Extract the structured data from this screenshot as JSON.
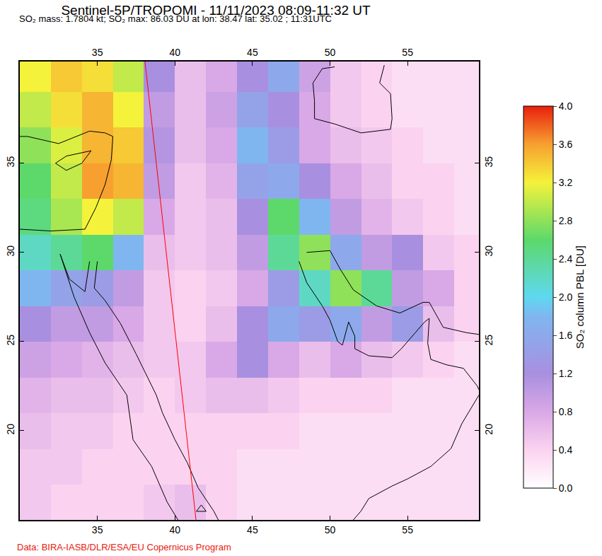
{
  "chart_data": {
    "type": "heatmap",
    "title": "Sentinel-5P/TROPOMI - 11/11/2023 08:09-11:32 UT",
    "subtitle": "SO₂ mass: 1.7804 kt; SO₂ max: 86.03 DU at lon: 38.47 lat: 35.02 ; 11:31UTC",
    "source": "Data: BIRA-IASB/DLR/ESA/EU Copernicus Program",
    "x": [
      31,
      33,
      35,
      37,
      39,
      41,
      43,
      45,
      47,
      49,
      51,
      53,
      55,
      57,
      59
    ],
    "y": [
      16,
      18,
      20,
      22,
      24,
      26,
      28,
      30,
      32,
      34,
      36,
      38,
      40
    ],
    "z": [
      [
        0.5,
        0.4,
        0.4,
        0.4,
        0.5,
        0.6,
        0.4,
        0.3,
        0.3,
        0.3,
        0.3,
        0.3,
        0.3,
        0.3,
        0.3
      ],
      [
        0.5,
        0.5,
        0.4,
        0.4,
        0.4,
        0.4,
        0.4,
        0.3,
        0.3,
        0.3,
        0.3,
        0.3,
        0.3,
        0.3,
        0.3
      ],
      [
        0.6,
        0.5,
        0.5,
        0.4,
        0.4,
        0.4,
        0.4,
        0.4,
        0.4,
        0.3,
        0.3,
        0.3,
        0.3,
        0.3,
        0.3
      ],
      [
        0.7,
        0.6,
        0.6,
        0.5,
        0.4,
        0.5,
        0.6,
        0.6,
        0.5,
        0.4,
        0.4,
        0.4,
        0.3,
        0.3,
        0.3
      ],
      [
        0.9,
        0.8,
        0.7,
        0.6,
        0.5,
        0.5,
        0.8,
        1.2,
        0.8,
        0.6,
        0.8,
        0.6,
        0.5,
        0.4,
        0.3
      ],
      [
        1.2,
        1.0,
        1.0,
        0.8,
        0.5,
        0.4,
        0.6,
        1.2,
        1.6,
        1.4,
        1.6,
        1.0,
        1.4,
        0.6,
        0.4
      ],
      [
        1.8,
        1.5,
        1.4,
        1.0,
        0.5,
        0.4,
        0.5,
        0.8,
        1.4,
        2.2,
        2.8,
        2.4,
        1.0,
        0.8,
        0.4
      ],
      [
        2.2,
        2.4,
        2.6,
        1.8,
        0.6,
        0.5,
        0.6,
        1.0,
        2.4,
        2.8,
        1.6,
        1.0,
        1.2,
        0.5,
        0.4
      ],
      [
        2.5,
        2.9,
        3.2,
        3.0,
        0.8,
        0.5,
        0.6,
        1.2,
        2.6,
        1.8,
        1.0,
        0.7,
        0.5,
        0.4,
        0.3
      ],
      [
        2.6,
        3.0,
        3.6,
        3.5,
        1.0,
        0.5,
        0.7,
        1.5,
        1.6,
        1.2,
        0.8,
        0.6,
        0.4,
        0.4,
        0.3
      ],
      [
        2.8,
        3.1,
        3.5,
        3.4,
        1.1,
        0.6,
        0.8,
        1.8,
        1.4,
        0.8,
        0.6,
        0.5,
        0.4,
        0.3,
        0.3
      ],
      [
        3.0,
        3.3,
        3.5,
        3.2,
        1.0,
        0.6,
        0.9,
        1.5,
        1.2,
        0.8,
        0.5,
        0.4,
        0.3,
        0.3,
        0.3
      ],
      [
        3.2,
        3.4,
        3.3,
        3.0,
        1.2,
        0.6,
        0.8,
        1.2,
        1.6,
        0.9,
        0.5,
        0.4,
        0.3,
        0.3,
        0.3
      ]
    ],
    "xlim": [
      30,
      59.6
    ],
    "ylim": [
      15,
      40.7
    ],
    "xticks": [
      35,
      40,
      45,
      50,
      55
    ],
    "yticks": [
      20,
      25,
      30,
      35
    ],
    "grid": true,
    "colorbar": {
      "title": "SO₂ column PBL [DU]",
      "range": [
        0,
        4
      ],
      "ticks": [
        {
          "value": 0,
          "label": "0.0"
        },
        0.4,
        0.8,
        1.2,
        1.6,
        {
          "value": 2,
          "label": "2.0"
        },
        2.4,
        2.8,
        3.2,
        3.6,
        {
          "value": 4,
          "label": "4.0"
        }
      ]
    },
    "coastlines": [
      [
        [
          32.6,
          29.9
        ],
        [
          33.5,
          27.5
        ],
        [
          34.5,
          25.5
        ],
        [
          35.5,
          23.8
        ],
        [
          36.9,
          22
        ],
        [
          37.3,
          19.5
        ],
        [
          38.5,
          18
        ],
        [
          39.5,
          16
        ],
        [
          40.2,
          15
        ]
      ],
      [
        [
          32.6,
          29.9
        ],
        [
          33.2,
          28.5
        ],
        [
          34.2,
          27.8
        ],
        [
          34.5,
          29.5
        ]
      ],
      [
        [
          35,
          29.5
        ],
        [
          34.8,
          28
        ],
        [
          35.5,
          27.3
        ],
        [
          36.5,
          26
        ],
        [
          37.5,
          24.3
        ],
        [
          38.8,
          22
        ],
        [
          39.2,
          21
        ],
        [
          40,
          19.5
        ],
        [
          40.8,
          18.2
        ],
        [
          41.5,
          16.8
        ],
        [
          42.5,
          15.5
        ],
        [
          42.8,
          15
        ]
      ],
      [
        [
          30,
          31.3
        ],
        [
          32,
          31.2
        ],
        [
          34.2,
          31.3
        ],
        [
          34.9,
          32.5
        ],
        [
          35.5,
          33.8
        ],
        [
          35.9,
          35.2
        ],
        [
          36,
          36.5
        ],
        [
          35.5,
          36.7
        ],
        [
          34.5,
          36.8
        ],
        [
          32.5,
          36.1
        ],
        [
          30.5,
          36.5
        ],
        [
          30,
          36.5
        ]
      ],
      [
        [
          32.3,
          35
        ],
        [
          33,
          35.4
        ],
        [
          34.6,
          35.7
        ],
        [
          34,
          35
        ],
        [
          33,
          34.6
        ],
        [
          32.3,
          35
        ]
      ],
      [
        [
          48.5,
          30
        ],
        [
          50,
          30.1
        ],
        [
          50.7,
          29
        ],
        [
          51.5,
          27.9
        ],
        [
          53,
          27
        ],
        [
          54.5,
          26.6
        ],
        [
          56,
          27.2
        ],
        [
          56.4,
          27.2
        ],
        [
          57.3,
          25.8
        ],
        [
          58.8,
          25.5
        ],
        [
          59.6,
          25.4
        ]
      ],
      [
        [
          48,
          29.5
        ],
        [
          48.5,
          28.3
        ],
        [
          49.5,
          27
        ],
        [
          50,
          26.2
        ],
        [
          50.5,
          25
        ],
        [
          50.8,
          24.8
        ],
        [
          51.2,
          26.1
        ],
        [
          51.6,
          25.3
        ],
        [
          51.6,
          24.6
        ],
        [
          52.5,
          24.2
        ],
        [
          54,
          24.1
        ],
        [
          54.6,
          24.6
        ],
        [
          55.5,
          25.5
        ],
        [
          56.1,
          26.1
        ],
        [
          56.4,
          26.3
        ],
        [
          56.3,
          24.9
        ],
        [
          56.5,
          24
        ],
        [
          57.5,
          23.7
        ],
        [
          58.6,
          23.5
        ],
        [
          59.5,
          22.5
        ],
        [
          59.6,
          22.3
        ]
      ],
      [
        [
          59.6,
          22
        ],
        [
          58.5,
          20.4
        ],
        [
          57.8,
          19
        ],
        [
          56.5,
          18
        ],
        [
          55,
          17.3
        ],
        [
          54,
          16.9
        ],
        [
          52.5,
          16.2
        ],
        [
          52,
          15.5
        ],
        [
          51.5,
          15
        ]
      ],
      [
        [
          50.3,
          40.4
        ],
        [
          49.5,
          40.3
        ],
        [
          48.9,
          39.5
        ],
        [
          49,
          38.5
        ],
        [
          49,
          37.5
        ],
        [
          50.3,
          37.2
        ],
        [
          52,
          36.7
        ],
        [
          53.9,
          36.9
        ],
        [
          54,
          37.5
        ],
        [
          53.9,
          38.9
        ],
        [
          53.2,
          39.5
        ],
        [
          53.5,
          40.5
        ]
      ]
    ],
    "orbit_edge": [
      [
        38.07,
        40.7
      ],
      [
        41.36,
        15
      ]
    ],
    "points": [
      {
        "lon": 41.7,
        "lat": 15.6,
        "marker": "triangle-up"
      }
    ]
  }
}
